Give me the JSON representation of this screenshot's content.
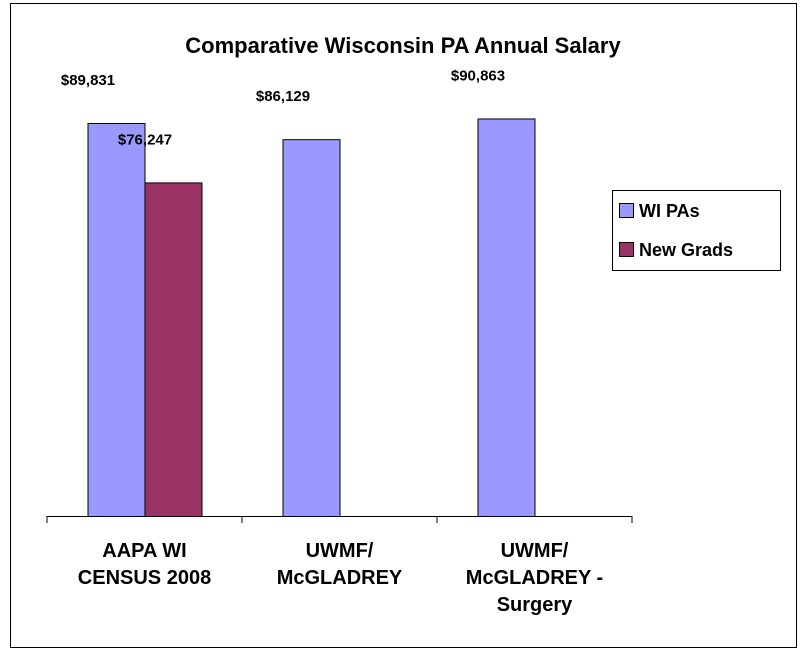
{
  "chart_data": {
    "type": "bar",
    "title": "Comparative Wisconsin PA Annual Salary",
    "categories": [
      "AAPA WI CENSUS 2008",
      "UWMF/ McGLADREY",
      "UWMF/ McGLADREY - Surgery"
    ],
    "series": [
      {
        "name": "WI PAs",
        "color": "#9999ff",
        "values": [
          89831,
          86129,
          90863
        ],
        "value_labels": [
          "$89,831",
          "$86,129",
          "$90,863"
        ]
      },
      {
        "name": "New Grads",
        "color": "#993366",
        "values": [
          76247,
          null,
          null
        ],
        "value_labels": [
          "$76,247",
          null,
          null
        ]
      }
    ],
    "ylim": [
      0,
      100000
    ],
    "legend": "right"
  }
}
